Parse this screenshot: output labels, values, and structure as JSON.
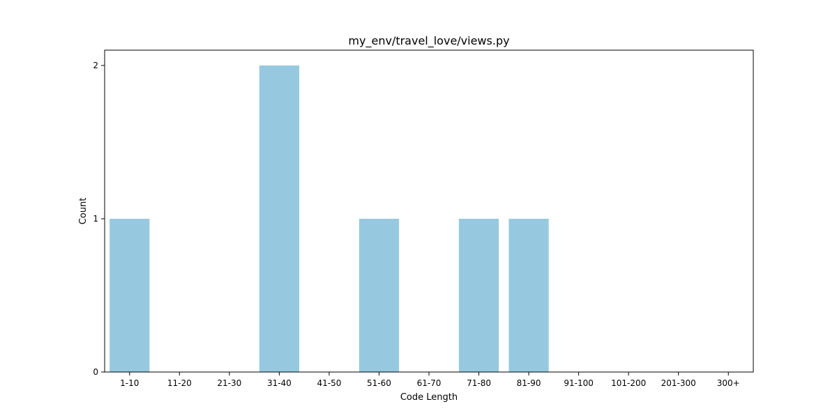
{
  "chart_data": {
    "type": "bar",
    "title": "my_env/travel_love/views.py",
    "xlabel": "Code Length",
    "ylabel": "Count",
    "categories": [
      "1-10",
      "11-20",
      "21-30",
      "31-40",
      "41-50",
      "51-60",
      "61-70",
      "71-80",
      "81-90",
      "91-100",
      "101-200",
      "201-300",
      "300+"
    ],
    "values": [
      1,
      0,
      0,
      2,
      0,
      1,
      0,
      1,
      1,
      0,
      0,
      0,
      0
    ],
    "ylim": [
      0,
      2.1
    ],
    "yticks": [
      0,
      1,
      2
    ],
    "bar_color": "#96c9df",
    "grid": false,
    "legend": "none"
  }
}
